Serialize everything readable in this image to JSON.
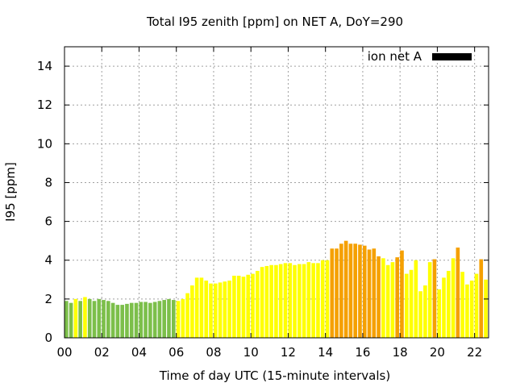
{
  "chart_data": {
    "type": "bar",
    "title": "Total I95 zenith [ppm] on NET A, DoY=290",
    "xlabel": "Time of day UTC (15-minute intervals)",
    "ylabel": "I95 [ppm]",
    "xlim": [
      0,
      22.75
    ],
    "ylim": [
      0,
      15
    ],
    "xticks": [
      0,
      2,
      4,
      6,
      8,
      10,
      12,
      14,
      16,
      18,
      20,
      22
    ],
    "xtick_labels": [
      "00",
      "02",
      "04",
      "06",
      "08",
      "10",
      "12",
      "14",
      "16",
      "18",
      "20",
      "22"
    ],
    "yticks": [
      0,
      2,
      4,
      6,
      8,
      10,
      12,
      14
    ],
    "ytick_labels": [
      "0",
      "2",
      "4",
      "6",
      "8",
      "10",
      "12",
      "14"
    ],
    "grid": true,
    "legend_position": "top-right",
    "series": [
      {
        "name": "ion net A",
        "legend_color": "#000000",
        "bar_width_hours": 0.2,
        "colors": {
          "G": "#7cbf4a",
          "Y": "#ffff00",
          "O": "#f5a000"
        },
        "x": [
          0,
          0.25,
          0.5,
          0.75,
          1,
          1.25,
          1.5,
          1.75,
          2,
          2.25,
          2.5,
          2.75,
          3,
          3.25,
          3.5,
          3.75,
          4,
          4.25,
          4.5,
          4.75,
          5,
          5.25,
          5.5,
          5.75,
          6,
          6.25,
          6.5,
          6.75,
          7,
          7.25,
          7.5,
          7.75,
          8,
          8.25,
          8.5,
          8.75,
          9,
          9.25,
          9.5,
          9.75,
          10,
          10.25,
          10.5,
          10.75,
          11,
          11.25,
          11.5,
          11.75,
          12,
          12.25,
          12.5,
          12.75,
          13,
          13.25,
          13.5,
          13.75,
          14,
          14.25,
          14.5,
          14.75,
          15,
          15.25,
          15.5,
          15.75,
          16,
          16.25,
          16.5,
          16.75,
          17,
          17.25,
          17.5,
          17.75,
          18,
          18.25,
          18.5,
          18.75,
          19,
          19.25,
          19.5,
          19.75,
          20,
          20.25,
          20.5,
          20.75,
          21,
          21.25,
          21.5,
          21.75,
          22,
          22.25,
          22.5
        ],
        "values": [
          1.9,
          1.8,
          2.0,
          1.9,
          2.1,
          2.0,
          1.9,
          2.0,
          1.95,
          1.9,
          1.8,
          1.7,
          1.7,
          1.75,
          1.8,
          1.8,
          1.85,
          1.85,
          1.8,
          1.85,
          1.9,
          1.95,
          2.0,
          1.95,
          1.9,
          2.0,
          2.3,
          2.7,
          3.1,
          3.1,
          2.95,
          2.8,
          2.8,
          2.85,
          2.9,
          2.95,
          3.2,
          3.2,
          3.15,
          3.25,
          3.3,
          3.45,
          3.65,
          3.7,
          3.75,
          3.75,
          3.8,
          3.85,
          3.85,
          3.75,
          3.8,
          3.8,
          3.9,
          3.85,
          3.85,
          4.0,
          4.0,
          4.6,
          4.6,
          4.85,
          5.0,
          4.85,
          4.85,
          4.8,
          4.75,
          4.55,
          4.6,
          4.2,
          4.1,
          3.75,
          3.9,
          4.15,
          4.5,
          3.3,
          3.5,
          4.0,
          2.4,
          2.7,
          3.9,
          4.05,
          2.5,
          3.1,
          3.45,
          4.1,
          4.65,
          3.4,
          2.75,
          2.95,
          3.3,
          4.05,
          3.0
        ],
        "color_codes": [
          "G",
          "G",
          "Y",
          "G",
          "Y",
          "G",
          "G",
          "G",
          "G",
          "G",
          "G",
          "G",
          "G",
          "G",
          "G",
          "G",
          "G",
          "G",
          "G",
          "G",
          "G",
          "G",
          "G",
          "G",
          "Y",
          "Y",
          "Y",
          "Y",
          "Y",
          "Y",
          "Y",
          "Y",
          "Y",
          "Y",
          "Y",
          "Y",
          "Y",
          "Y",
          "Y",
          "Y",
          "Y",
          "Y",
          "Y",
          "Y",
          "Y",
          "Y",
          "Y",
          "Y",
          "Y",
          "Y",
          "Y",
          "Y",
          "Y",
          "Y",
          "Y",
          "Y",
          "Y",
          "O",
          "O",
          "O",
          "O",
          "O",
          "O",
          "O",
          "O",
          "O",
          "O",
          "O",
          "Y",
          "Y",
          "Y",
          "O",
          "O",
          "Y",
          "Y",
          "Y",
          "Y",
          "Y",
          "Y",
          "O",
          "Y",
          "Y",
          "Y",
          "Y",
          "O",
          "Y",
          "Y",
          "Y",
          "Y",
          "O",
          "Y"
        ]
      }
    ]
  }
}
